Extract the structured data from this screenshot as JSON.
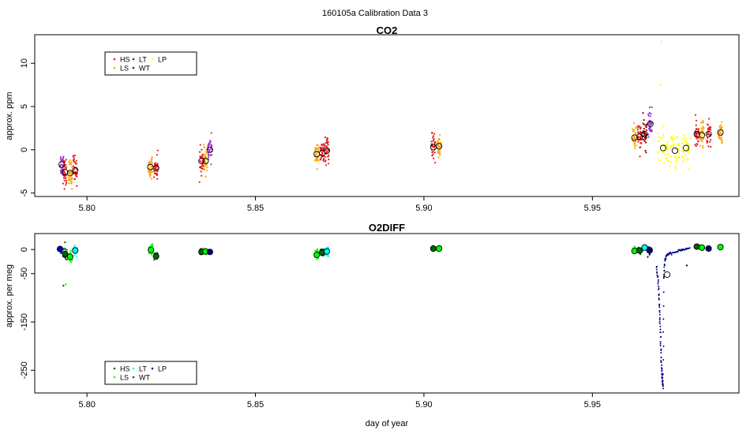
{
  "figure_title": "160105a   Calibration Data 3",
  "xlabel": "day of year",
  "chart_data": [
    {
      "type": "scatter",
      "title": "CO2",
      "ylabel": "approx. ppm",
      "xlim": [
        5.7845,
        5.9935
      ],
      "ylim": [
        -5.4,
        13.3
      ],
      "x_ticks": [
        5.8,
        5.85,
        5.9,
        5.95
      ],
      "x_tick_labels": [
        "5.80",
        "5.85",
        "5.90",
        "5.95"
      ],
      "y_ticks": [
        -5,
        0,
        5,
        10
      ],
      "y_tick_labels": [
        "-5",
        "0",
        "5",
        "10"
      ],
      "legend": {
        "placement": "top-left",
        "entries": [
          {
            "label": "HS",
            "color": "#e41a1c"
          },
          {
            "label": "LS",
            "color": "#ffa500"
          },
          {
            "label": "LT",
            "color": "#8b0000"
          },
          {
            "label": "WT",
            "color": "#8b0000"
          },
          {
            "label": "LP",
            "color": "#ffff00"
          }
        ]
      },
      "clusters": [
        {
          "x": 5.7925,
          "mean": -1.7,
          "color": "#9932cc",
          "sd": 0.7,
          "width": 0.0012
        },
        {
          "x": 5.7935,
          "mean": -2.6,
          "color": "#e41a1c",
          "sd": 0.8,
          "width": 0.0012
        },
        {
          "x": 5.795,
          "mean": -2.7,
          "color": "#ffa500",
          "sd": 0.8,
          "width": 0.0012
        },
        {
          "x": 5.7965,
          "mean": -2.4,
          "color": "#e41a1c",
          "sd": 0.8,
          "width": 0.0012
        },
        {
          "x": 5.8188,
          "mean": -2.0,
          "color": "#ffa500",
          "sd": 0.6,
          "width": 0.0012
        },
        {
          "x": 5.8205,
          "mean": -2.1,
          "color": "#e41a1c",
          "sd": 0.7,
          "width": 0.0012
        },
        {
          "x": 5.834,
          "mean": -1.3,
          "color": "#e41a1c",
          "sd": 0.7,
          "width": 0.0012
        },
        {
          "x": 5.8352,
          "mean": -1.3,
          "color": "#ffa500",
          "sd": 0.7,
          "width": 0.0012
        },
        {
          "x": 5.8365,
          "mean": 0.0,
          "color": "#9932cc",
          "sd": 0.7,
          "width": 0.0012
        },
        {
          "x": 5.8682,
          "mean": -0.5,
          "color": "#ffa500",
          "sd": 0.6,
          "width": 0.0012
        },
        {
          "x": 5.8698,
          "mean": -0.4,
          "color": "#e41a1c",
          "sd": 0.7,
          "width": 0.0012
        },
        {
          "x": 5.8712,
          "mean": -0.1,
          "color": "#e41a1c",
          "sd": 0.7,
          "width": 0.0012
        },
        {
          "x": 5.9028,
          "mean": 0.3,
          "color": "#e41a1c",
          "sd": 0.7,
          "width": 0.0012
        },
        {
          "x": 5.9045,
          "mean": 0.4,
          "color": "#ffa500",
          "sd": 0.7,
          "width": 0.0012
        },
        {
          "x": 5.9625,
          "mean": 1.4,
          "color": "#ffa500",
          "sd": 0.8,
          "width": 0.0012
        },
        {
          "x": 5.964,
          "mean": 1.5,
          "color": "#e41a1c",
          "sd": 0.8,
          "width": 0.0012
        },
        {
          "x": 5.9655,
          "mean": 1.8,
          "color": "#8b0000",
          "sd": 0.8,
          "width": 0.0012
        },
        {
          "x": 5.9672,
          "mean": 3.0,
          "color": "#9932cc",
          "sd": 0.8,
          "width": 0.0012
        },
        {
          "x": 5.971,
          "mean": 0.2,
          "color": "#ffff00",
          "sd": 1.0,
          "width": 0.0035
        },
        {
          "x": 5.9745,
          "mean": -0.1,
          "color": "#ffff00",
          "sd": 1.0,
          "width": 0.003
        },
        {
          "x": 5.9778,
          "mean": 0.2,
          "color": "#ffff00",
          "sd": 1.0,
          "width": 0.0025
        },
        {
          "x": 5.981,
          "mean": 1.8,
          "color": "#e41a1c",
          "sd": 0.7,
          "width": 0.0012
        },
        {
          "x": 5.9825,
          "mean": 1.7,
          "color": "#ffa500",
          "sd": 0.7,
          "width": 0.0012
        },
        {
          "x": 5.9845,
          "mean": 1.8,
          "color": "#e41a1c",
          "sd": 0.7,
          "width": 0.0012
        },
        {
          "x": 5.988,
          "mean": 2.0,
          "color": "#ffa500",
          "sd": 0.7,
          "width": 0.0012
        }
      ],
      "outliers": [
        {
          "x": 5.9705,
          "y": 12.5,
          "color": "#ffff00"
        },
        {
          "x": 5.9703,
          "y": 7.5,
          "color": "#ffff00"
        }
      ]
    },
    {
      "type": "scatter",
      "title": "O2DIFF",
      "ylabel": "approx. per meg",
      "xlim": [
        5.7845,
        5.9935
      ],
      "ylim": [
        -297,
        33
      ],
      "x_ticks": [
        5.8,
        5.85,
        5.9,
        5.95
      ],
      "x_tick_labels": [
        "5.80",
        "5.85",
        "5.90",
        "5.95"
      ],
      "y_ticks": [
        0,
        -50,
        -150,
        -250
      ],
      "y_tick_labels": [
        "0",
        "-50",
        "-150",
        "-250"
      ],
      "legend": {
        "placement": "bottom-left",
        "entries": [
          {
            "label": "HS",
            "color": "#006400"
          },
          {
            "label": "LS",
            "color": "#00ff00"
          },
          {
            "label": "LT",
            "color": "#00ffff"
          },
          {
            "label": "WT",
            "color": "#006400"
          },
          {
            "label": "LP",
            "color": "#000080"
          }
        ]
      },
      "clusters": [
        {
          "x": 5.792,
          "mean": 1,
          "color": "#0000cd",
          "sd": 3,
          "width": 0.0012
        },
        {
          "x": 5.7935,
          "mean": -9,
          "color": "#006400",
          "sd": 6,
          "width": 0.0012
        },
        {
          "x": 5.795,
          "mean": -15,
          "color": "#00ff00",
          "sd": 5,
          "width": 0.0012
        },
        {
          "x": 5.7965,
          "mean": -2,
          "color": "#00ffff",
          "sd": 5,
          "width": 0.0012
        },
        {
          "x": 5.819,
          "mean": -1,
          "color": "#00ff00",
          "sd": 7,
          "width": 0.0012
        },
        {
          "x": 5.8205,
          "mean": -14,
          "color": "#006400",
          "sd": 4,
          "width": 0.0012
        },
        {
          "x": 5.834,
          "mean": -5,
          "color": "#006400",
          "sd": 3,
          "width": 0.0012
        },
        {
          "x": 5.8352,
          "mean": -4,
          "color": "#00ff00",
          "sd": 3,
          "width": 0.0012
        },
        {
          "x": 5.8365,
          "mean": -5,
          "color": "#000080",
          "sd": 2,
          "width": 0.0012
        },
        {
          "x": 5.8682,
          "mean": -11,
          "color": "#00ff00",
          "sd": 5,
          "width": 0.0012
        },
        {
          "x": 5.8698,
          "mean": -6,
          "color": "#006400",
          "sd": 4,
          "width": 0.0012
        },
        {
          "x": 5.8712,
          "mean": -4,
          "color": "#00ffff",
          "sd": 4,
          "width": 0.0012
        },
        {
          "x": 5.9028,
          "mean": 2,
          "color": "#006400",
          "sd": 2,
          "width": 0.0012
        },
        {
          "x": 5.9045,
          "mean": 2,
          "color": "#00ff00",
          "sd": 2,
          "width": 0.0012
        },
        {
          "x": 5.9625,
          "mean": -3,
          "color": "#00ff00",
          "sd": 4,
          "width": 0.0012
        },
        {
          "x": 5.964,
          "mean": -2,
          "color": "#006400",
          "sd": 3,
          "width": 0.0012
        },
        {
          "x": 5.9655,
          "mean": 4,
          "color": "#00ffff",
          "sd": 3,
          "width": 0.0012
        },
        {
          "x": 5.967,
          "mean": -2,
          "color": "#000080",
          "sd": 4,
          "width": 0.0012
        },
        {
          "x": 5.981,
          "mean": 6,
          "color": "#006400",
          "sd": 2,
          "width": 0.0012
        },
        {
          "x": 5.9825,
          "mean": 4,
          "color": "#00ff00",
          "sd": 2,
          "width": 0.0012
        },
        {
          "x": 5.9845,
          "mean": 2,
          "color": "#000080",
          "sd": 2,
          "width": 0.0012
        },
        {
          "x": 5.988,
          "mean": 5,
          "color": "#00ff00",
          "sd": 2,
          "width": 0.0012
        }
      ],
      "lp_trace": {
        "color": "#000080",
        "points": [
          [
            5.969,
            -35
          ],
          [
            5.9695,
            -60
          ],
          [
            5.9698,
            -100
          ],
          [
            5.97,
            -140
          ],
          [
            5.9702,
            -180
          ],
          [
            5.9704,
            -220
          ],
          [
            5.9706,
            -250
          ],
          [
            5.9708,
            -270
          ],
          [
            5.971,
            -285
          ],
          [
            5.9712,
            -60
          ],
          [
            5.9715,
            -25
          ],
          [
            5.972,
            -12
          ],
          [
            5.973,
            -8
          ],
          [
            5.9745,
            -5
          ],
          [
            5.976,
            -3
          ],
          [
            5.9775,
            0
          ],
          [
            5.979,
            2
          ]
        ]
      },
      "outliers": [
        {
          "x": 5.793,
          "y": -75,
          "color": "#006400"
        },
        {
          "x": 5.7937,
          "y": -72,
          "color": "#00ff00"
        },
        {
          "x": 5.7935,
          "y": 15,
          "color": "#006400"
        },
        {
          "x": 5.978,
          "y": -33,
          "color": "#000080"
        }
      ],
      "mean_markers": [
        {
          "x": 5.9722,
          "y": -52,
          "fill": "none"
        }
      ]
    }
  ]
}
